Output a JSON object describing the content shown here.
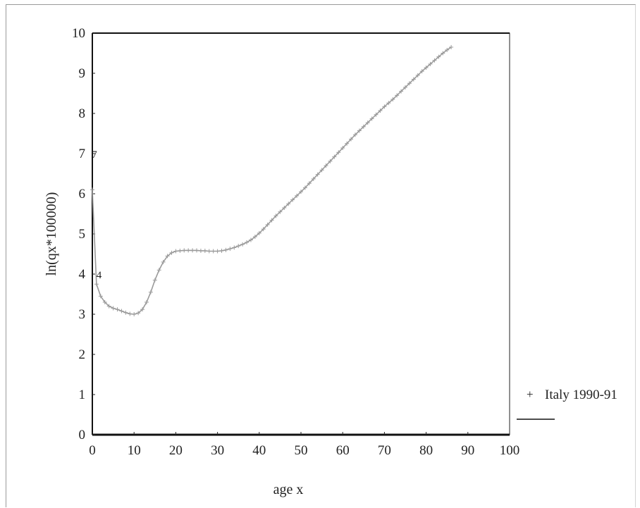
{
  "chart_data": {
    "type": "line",
    "title": "",
    "xlabel": "age x",
    "ylabel": "ln(qx*100000)",
    "xlim": [
      0,
      100
    ],
    "ylim": [
      0,
      10
    ],
    "xticks": [
      "0",
      "10",
      "20",
      "30",
      "40",
      "50",
      "60",
      "70",
      "80",
      "90",
      "100"
    ],
    "yticks": [
      "0",
      "1",
      "2",
      "3",
      "4",
      "5",
      "6",
      "7",
      "8",
      "9",
      "10"
    ],
    "legend_position": "right",
    "grid": false,
    "series": [
      {
        "name": "Italy 1990-91",
        "marker": "+",
        "color": "#9a9a9a",
        "x": [
          0,
          1,
          2,
          3,
          4,
          5,
          6,
          7,
          8,
          9,
          10,
          11,
          12,
          13,
          14,
          15,
          16,
          17,
          18,
          19,
          20,
          21,
          22,
          23,
          24,
          25,
          26,
          27,
          28,
          29,
          30,
          31,
          32,
          33,
          34,
          35,
          36,
          37,
          38,
          39,
          40,
          41,
          42,
          43,
          44,
          45,
          46,
          47,
          48,
          49,
          50,
          51,
          52,
          53,
          54,
          55,
          56,
          57,
          58,
          59,
          60,
          61,
          62,
          63,
          64,
          65,
          66,
          67,
          68,
          69,
          70,
          71,
          72,
          73,
          74,
          75,
          76,
          77,
          78,
          79,
          80,
          81,
          82,
          83,
          84,
          85,
          86
        ],
        "y": [
          6.1,
          3.75,
          3.45,
          3.3,
          3.2,
          3.15,
          3.12,
          3.08,
          3.04,
          3.01,
          3.0,
          3.03,
          3.12,
          3.3,
          3.55,
          3.85,
          4.1,
          4.3,
          4.45,
          4.53,
          4.57,
          4.58,
          4.59,
          4.59,
          4.59,
          4.59,
          4.58,
          4.58,
          4.57,
          4.57,
          4.57,
          4.58,
          4.6,
          4.63,
          4.66,
          4.7,
          4.74,
          4.79,
          4.85,
          4.93,
          5.02,
          5.12,
          5.23,
          5.34,
          5.45,
          5.55,
          5.65,
          5.75,
          5.85,
          5.95,
          6.05,
          6.15,
          6.26,
          6.37,
          6.48,
          6.59,
          6.7,
          6.81,
          6.92,
          7.03,
          7.14,
          7.25,
          7.36,
          7.47,
          7.57,
          7.67,
          7.77,
          7.87,
          7.97,
          8.07,
          8.17,
          8.26,
          8.35,
          8.45,
          8.55,
          8.65,
          8.75,
          8.85,
          8.95,
          9.05,
          9.14,
          9.23,
          9.32,
          9.41,
          9.5,
          9.58,
          9.65
        ]
      }
    ],
    "annotations": [
      {
        "text": "7",
        "x": 0.5,
        "y": 7.0
      },
      {
        "text": "4",
        "x": 1.6,
        "y": 4.0
      }
    ]
  }
}
